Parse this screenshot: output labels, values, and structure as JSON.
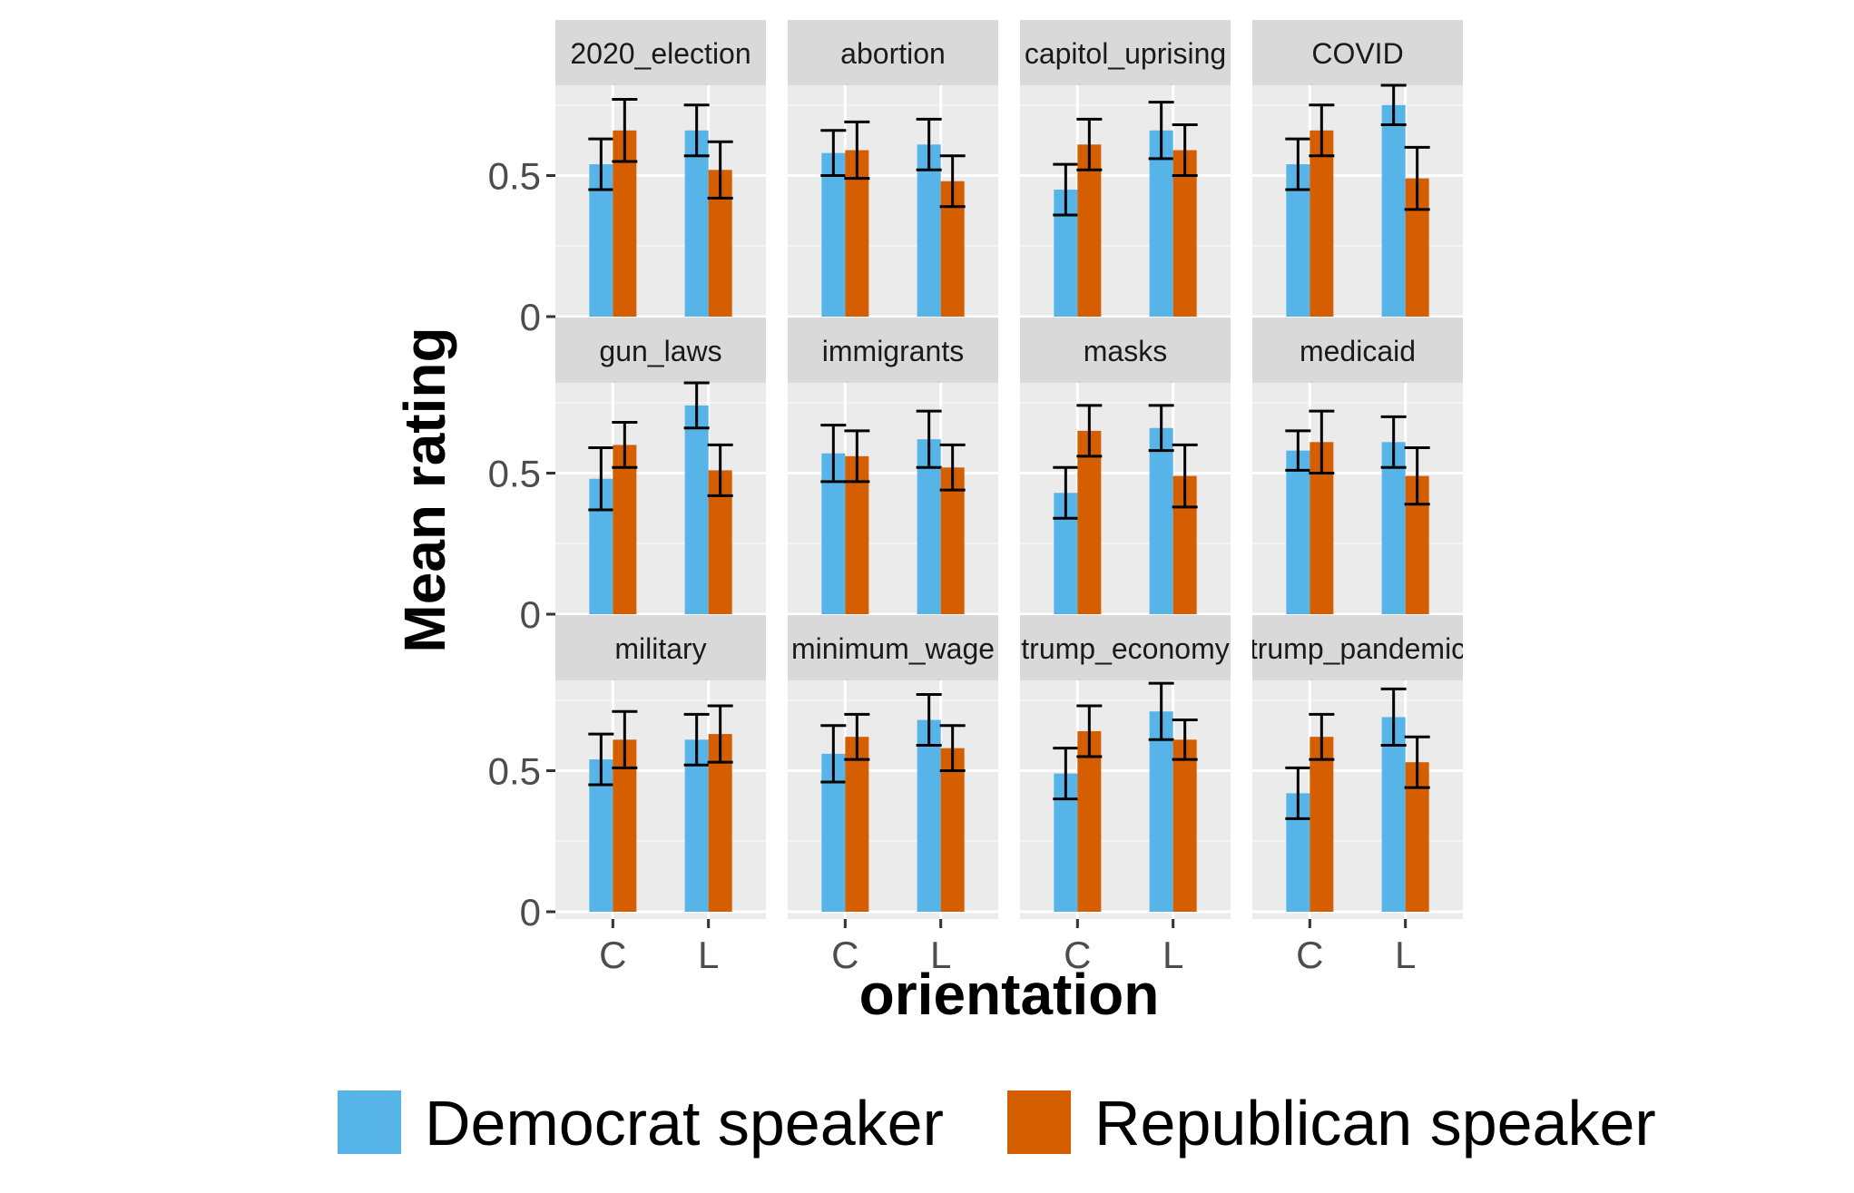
{
  "chart_data": {
    "type": "bar",
    "xlabel": "orientation",
    "ylabel": "Mean rating",
    "ylim": [
      0,
      0.82
    ],
    "y_ticks": [
      {
        "value": 0,
        "label": "0"
      },
      {
        "value": 0.5,
        "label": "0.5"
      }
    ],
    "categories": [
      "C",
      "L"
    ],
    "grid": true,
    "legend_position": "bottom",
    "series": [
      {
        "name": "Democrat speaker",
        "color": "#56B4E9"
      },
      {
        "name": "Republican speaker",
        "color": "#D55E00"
      }
    ],
    "facets": [
      {
        "title": "2020_election",
        "values": [
          [
            0.54,
            0.66
          ],
          [
            0.66,
            0.52
          ]
        ],
        "errors": [
          [
            0.09,
            0.11
          ],
          [
            0.09,
            0.1
          ]
        ]
      },
      {
        "title": "abortion",
        "values": [
          [
            0.58,
            0.59
          ],
          [
            0.61,
            0.48
          ]
        ],
        "errors": [
          [
            0.08,
            0.1
          ],
          [
            0.09,
            0.09
          ]
        ]
      },
      {
        "title": "capitol_uprising",
        "values": [
          [
            0.45,
            0.61
          ],
          [
            0.66,
            0.59
          ]
        ],
        "errors": [
          [
            0.09,
            0.09
          ],
          [
            0.1,
            0.09
          ]
        ]
      },
      {
        "title": "COVID",
        "values": [
          [
            0.54,
            0.66
          ],
          [
            0.75,
            0.49
          ]
        ],
        "errors": [
          [
            0.09,
            0.09
          ],
          [
            0.07,
            0.11
          ]
        ]
      },
      {
        "title": "gun_laws",
        "values": [
          [
            0.48,
            0.6
          ],
          [
            0.74,
            0.51
          ]
        ],
        "errors": [
          [
            0.11,
            0.08
          ],
          [
            0.08,
            0.09
          ]
        ]
      },
      {
        "title": "immigrants",
        "values": [
          [
            0.57,
            0.56
          ],
          [
            0.62,
            0.52
          ]
        ],
        "errors": [
          [
            0.1,
            0.09
          ],
          [
            0.1,
            0.08
          ]
        ]
      },
      {
        "title": "masks",
        "values": [
          [
            0.43,
            0.65
          ],
          [
            0.66,
            0.49
          ]
        ],
        "errors": [
          [
            0.09,
            0.09
          ],
          [
            0.08,
            0.11
          ]
        ]
      },
      {
        "title": "medicaid",
        "values": [
          [
            0.58,
            0.61
          ],
          [
            0.61,
            0.49
          ]
        ],
        "errors": [
          [
            0.07,
            0.11
          ],
          [
            0.09,
            0.1
          ]
        ]
      },
      {
        "title": "military",
        "values": [
          [
            0.54,
            0.61
          ],
          [
            0.61,
            0.63
          ]
        ],
        "errors": [
          [
            0.09,
            0.1
          ],
          [
            0.09,
            0.1
          ]
        ]
      },
      {
        "title": "minimum_wage",
        "values": [
          [
            0.56,
            0.62
          ],
          [
            0.68,
            0.58
          ]
        ],
        "errors": [
          [
            0.1,
            0.08
          ],
          [
            0.09,
            0.08
          ]
        ]
      },
      {
        "title": "trump_economy",
        "values": [
          [
            0.49,
            0.64
          ],
          [
            0.71,
            0.61
          ]
        ],
        "errors": [
          [
            0.09,
            0.09
          ],
          [
            0.1,
            0.07
          ]
        ]
      },
      {
        "title": "trump_pandemic",
        "values": [
          [
            0.42,
            0.62
          ],
          [
            0.69,
            0.53
          ]
        ],
        "errors": [
          [
            0.09,
            0.08
          ],
          [
            0.1,
            0.09
          ]
        ]
      }
    ]
  }
}
